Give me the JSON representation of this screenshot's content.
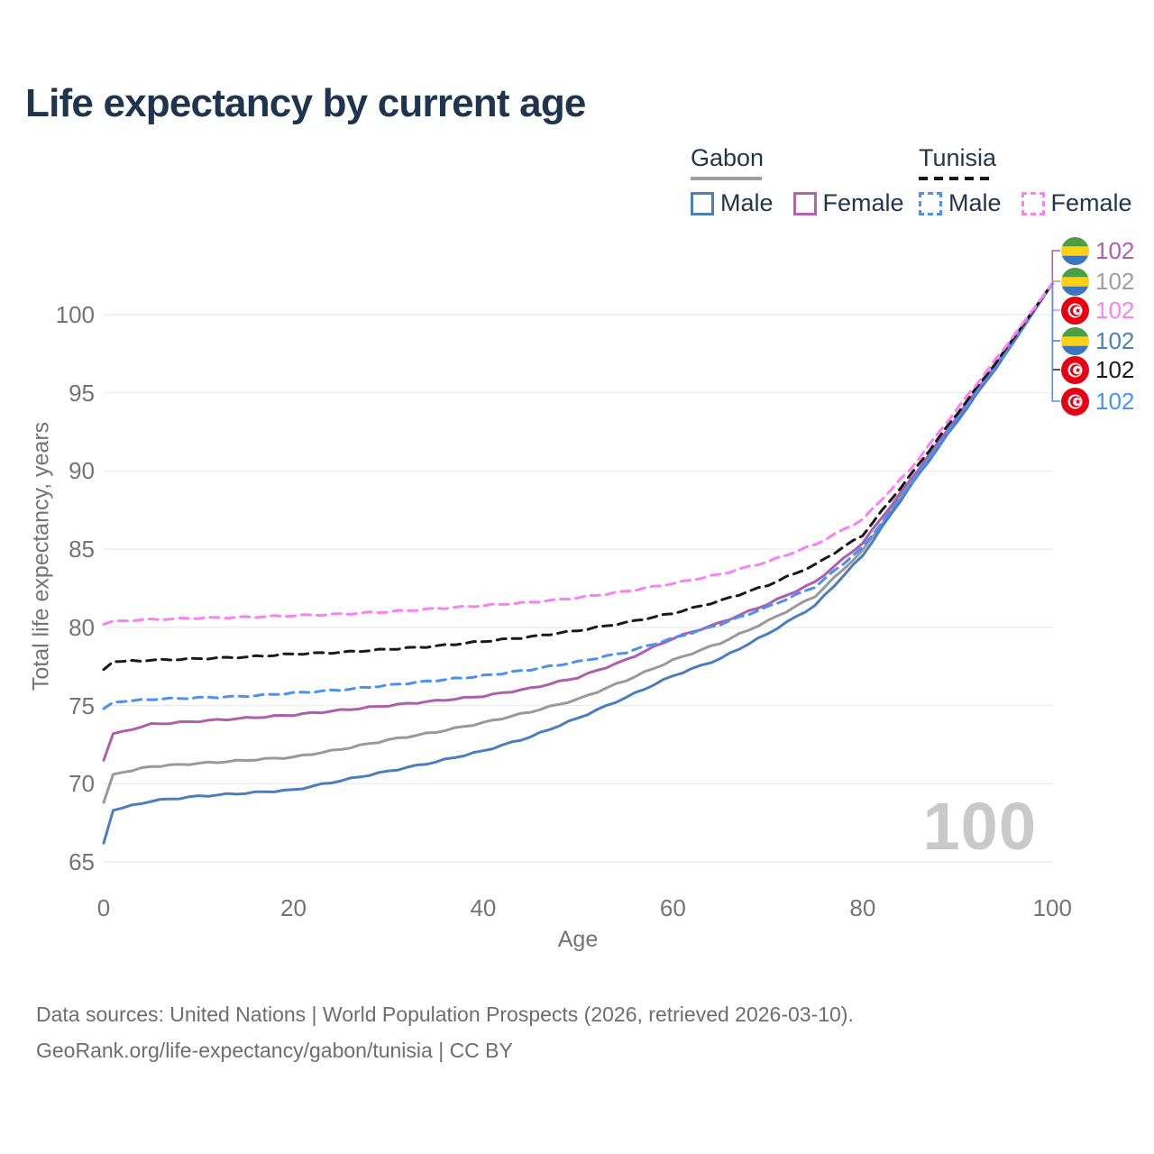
{
  "title": "Life expectancy by current age",
  "legend": {
    "gabon": {
      "label": "Gabon",
      "male": "Male",
      "female": "Female"
    },
    "tunisia": {
      "label": "Tunisia",
      "male": "Male",
      "female": "Female"
    }
  },
  "watermark": "100",
  "y_axis": {
    "title": "Total life expectancy, years",
    "ticks": [
      65,
      70,
      75,
      80,
      85,
      90,
      95,
      100
    ]
  },
  "x_axis": {
    "title": "Age",
    "ticks": [
      0,
      20,
      40,
      60,
      80,
      100
    ]
  },
  "end_labels": [
    {
      "series": "gabon-female",
      "flag": "gabon",
      "value": "102",
      "color": "#ad5fad"
    },
    {
      "series": "gabon-both",
      "flag": "gabon",
      "value": "102",
      "color": "#9e9e9e"
    },
    {
      "series": "tunisia-female",
      "flag": "tunisia",
      "value": "102",
      "color": "#fb80f1"
    },
    {
      "series": "gabon-male",
      "flag": "gabon",
      "value": "102",
      "color": "#4a7ebd"
    },
    {
      "series": "tunisia-both",
      "flag": "tunisia",
      "value": "102",
      "color": "#1a1a1a"
    },
    {
      "series": "tunisia-male",
      "flag": "tunisia",
      "value": "102",
      "color": "#4a90f7"
    }
  ],
  "footer": {
    "line1": "Data sources: United Nations | World Population Prospects (2026, retrieved 2026-03-10).",
    "line2": "GeoRank.org/life-expectancy/gabon/tunisia | CC BY"
  },
  "chart_data": {
    "type": "line",
    "title": "Life expectancy by current age",
    "xlabel": "Age",
    "ylabel": "Total life expectancy, years",
    "xlim": [
      0,
      100
    ],
    "ylim": [
      65,
      103
    ],
    "grid": "horizontal",
    "legend_position": "top-right",
    "x": [
      0,
      1,
      5,
      10,
      15,
      20,
      25,
      30,
      35,
      40,
      45,
      50,
      55,
      60,
      65,
      70,
      75,
      80,
      85,
      90,
      95,
      100
    ],
    "series": [
      {
        "name": "gabon-both",
        "country": "Gabon",
        "sex": "Both",
        "color": "#999999",
        "dash": false,
        "values": [
          68.8,
          70.6,
          71.1,
          71.3,
          71.5,
          71.7,
          72.2,
          72.8,
          73.3,
          73.9,
          74.6,
          75.4,
          76.6,
          77.9,
          79.0,
          80.4,
          82.0,
          84.9,
          89.2,
          93.3,
          97.5,
          102
        ]
      },
      {
        "name": "gabon-male",
        "country": "Gabon",
        "sex": "Male",
        "color": "#4a7ebd",
        "dash": false,
        "values": [
          66.2,
          68.3,
          68.9,
          69.2,
          69.4,
          69.6,
          70.2,
          70.8,
          71.4,
          72.1,
          73.0,
          74.2,
          75.5,
          76.9,
          78.0,
          79.6,
          81.4,
          84.6,
          89.0,
          93.2,
          97.4,
          102
        ]
      },
      {
        "name": "gabon-female",
        "country": "Gabon",
        "sex": "Female",
        "color": "#ad5fad",
        "dash": false,
        "values": [
          71.5,
          73.2,
          73.8,
          74.0,
          74.2,
          74.4,
          74.7,
          75.0,
          75.3,
          75.6,
          76.1,
          76.8,
          77.9,
          79.3,
          80.3,
          81.5,
          82.9,
          85.4,
          89.4,
          93.5,
          97.6,
          102
        ]
      },
      {
        "name": "tunisia-male",
        "country": "Tunisia",
        "sex": "Male",
        "color": "#4a90f7",
        "dash": true,
        "values": [
          74.8,
          75.2,
          75.4,
          75.5,
          75.6,
          75.8,
          76.0,
          76.3,
          76.6,
          76.9,
          77.3,
          77.8,
          78.4,
          79.3,
          80.2,
          81.3,
          82.6,
          85.1,
          89.1,
          93.4,
          97.5,
          102
        ]
      },
      {
        "name": "tunisia-both",
        "country": "Tunisia",
        "sex": "Both",
        "color": "#1a1a1a",
        "dash": true,
        "values": [
          77.3,
          77.8,
          77.9,
          78.0,
          78.1,
          78.3,
          78.4,
          78.6,
          78.8,
          79.1,
          79.4,
          79.8,
          80.3,
          80.9,
          81.7,
          82.7,
          84.0,
          85.9,
          89.7,
          93.7,
          97.7,
          102
        ]
      },
      {
        "name": "tunisia-female",
        "country": "Tunisia",
        "sex": "Female",
        "color": "#fb80f1",
        "dash": true,
        "values": [
          80.2,
          80.4,
          80.5,
          80.6,
          80.65,
          80.75,
          80.85,
          81.0,
          81.2,
          81.4,
          81.6,
          81.9,
          82.3,
          82.8,
          83.4,
          84.2,
          85.3,
          86.9,
          90.1,
          94.0,
          97.9,
          102
        ]
      }
    ],
    "end_value_label": "102",
    "age_counter": "100"
  }
}
